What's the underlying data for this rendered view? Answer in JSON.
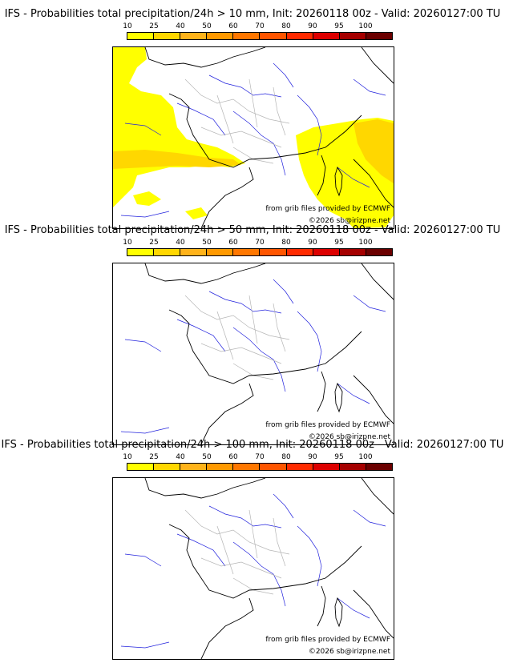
{
  "legend": {
    "labels": [
      "10",
      "25",
      "40",
      "50",
      "60",
      "70",
      "80",
      "90",
      "95",
      "100"
    ],
    "colors": [
      "#ffff00",
      "#ffd700",
      "#ffb31a",
      "#ff9900",
      "#ff7700",
      "#ff5500",
      "#ff2a00",
      "#dd0000",
      "#a50000",
      "#6b0000"
    ]
  },
  "credits": {
    "source": "from grib files provided by ECMWF",
    "copyright": "©2026 sb@irizpne.net"
  },
  "panels": [
    {
      "title": "IFS - Probabilities total precipitation/24h > 10 mm, Init: 20260118 00z - Valid: 20260127:00 TU",
      "threshold_mm": 10,
      "has_precip": true
    },
    {
      "title": "IFS - Probabilities total precipitation/24h > 50 mm, Init: 20260118 00z - Valid: 20260127:00 TU",
      "threshold_mm": 50,
      "has_precip": false
    },
    {
      "title": "IFS - Probabilities total precipitation/24h > 100 mm, Init: 20260118 00z - Valid: 20260127:00 TU",
      "threshold_mm": 100,
      "has_precip": false
    }
  ],
  "colors": {
    "coast": "#000000",
    "borders": "#b5b5b5",
    "rivers": "#2222dd",
    "precip_low": "#ffff00",
    "precip_mid": "#ffd700"
  }
}
